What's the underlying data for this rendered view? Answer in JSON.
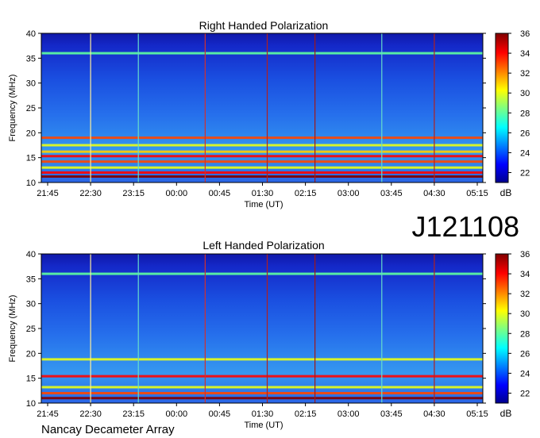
{
  "page": {
    "observation_id": "J121108",
    "instrument": "Nancay Decameter Array"
  },
  "chart_data": [
    {
      "type": "heatmap",
      "title": "Right Handed Polarization",
      "xlabel": "Time (UT)",
      "ylabel": "Frequency (MHz)",
      "x_ticks": [
        "21:45",
        "22:30",
        "23:15",
        "00:00",
        "00:45",
        "01:30",
        "02:15",
        "03:00",
        "03:45",
        "04:30",
        "05:15"
      ],
      "y_ticks": [
        10,
        15,
        20,
        25,
        30,
        35,
        40
      ],
      "ylim": [
        10,
        40
      ],
      "colorbar": {
        "label": "dB",
        "ticks": [
          22,
          24,
          26,
          28,
          30,
          32,
          34,
          36
        ],
        "range": [
          21,
          36
        ]
      },
      "horizontal_bands": [
        {
          "freq": 11.2,
          "level": 36
        },
        {
          "freq": 12.0,
          "level": 34
        },
        {
          "freq": 13.0,
          "level": 30
        },
        {
          "freq": 14.2,
          "level": 33
        },
        {
          "freq": 15.3,
          "level": 34
        },
        {
          "freq": 16.2,
          "level": 31
        },
        {
          "freq": 17.5,
          "level": 30
        },
        {
          "freq": 19.0,
          "level": 33
        },
        {
          "freq": 36.0,
          "level": 28
        }
      ],
      "vertical_lines": [
        {
          "time": "22:30",
          "color": "#ffee99"
        },
        {
          "time": "23:20",
          "color": "#66ddcc"
        },
        {
          "time": "00:30",
          "color": "#d03030"
        },
        {
          "time": "01:35",
          "color": "#b02020"
        },
        {
          "time": "02:25",
          "color": "#a01818"
        },
        {
          "time": "03:35",
          "color": "#66ddcc"
        },
        {
          "time": "04:30",
          "color": "#b02020"
        }
      ]
    },
    {
      "type": "heatmap",
      "title": "Left Handed Polarization",
      "xlabel": "Time (UT)",
      "ylabel": "Frequency (MHz)",
      "x_ticks": [
        "21:45",
        "22:30",
        "23:15",
        "00:00",
        "00:45",
        "01:30",
        "02:15",
        "03:00",
        "03:45",
        "04:30",
        "05:15"
      ],
      "y_ticks": [
        10,
        15,
        20,
        25,
        30,
        35,
        40
      ],
      "ylim": [
        10,
        40
      ],
      "colorbar": {
        "label": "dB",
        "ticks": [
          22,
          24,
          26,
          28,
          30,
          32,
          34,
          36
        ],
        "range": [
          21,
          36
        ]
      },
      "horizontal_bands": [
        {
          "freq": 11.0,
          "level": 36
        },
        {
          "freq": 12.0,
          "level": 33
        },
        {
          "freq": 13.2,
          "level": 30
        },
        {
          "freq": 15.4,
          "level": 34
        },
        {
          "freq": 18.8,
          "level": 30
        },
        {
          "freq": 36.0,
          "level": 28
        }
      ],
      "vertical_lines": [
        {
          "time": "22:30",
          "color": "#ffee99"
        },
        {
          "time": "23:20",
          "color": "#66ddcc"
        },
        {
          "time": "00:30",
          "color": "#d03030"
        },
        {
          "time": "01:35",
          "color": "#b02020"
        },
        {
          "time": "02:25",
          "color": "#a01818"
        },
        {
          "time": "03:35",
          "color": "#66ddcc"
        },
        {
          "time": "04:30",
          "color": "#b02020"
        }
      ]
    }
  ]
}
